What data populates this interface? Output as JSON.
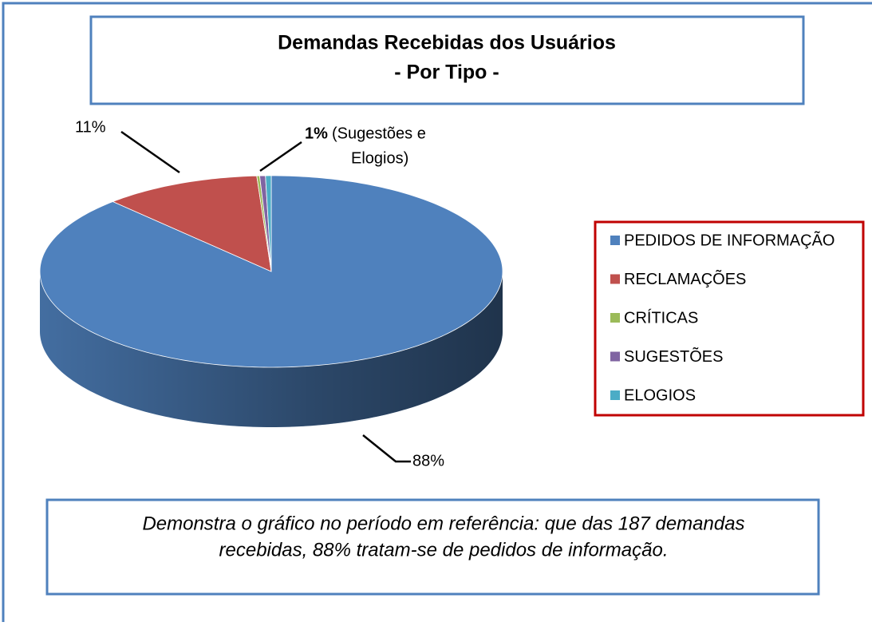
{
  "chart_data": {
    "type": "pie3d",
    "title": [
      "Demandas Recebidas dos Usuários",
      "- Por Tipo -"
    ],
    "categories": [
      "PEDIDOS DE INFORMAÇÃO",
      "RECLAMAÇÕES",
      "CRÍTICAS",
      "SUGESTÕES",
      "ELOGIOS"
    ],
    "values": [
      88,
      11,
      0.2,
      0.4,
      0.4
    ],
    "value_labels": [
      "88%",
      "11%",
      null,
      null,
      null
    ],
    "colors": [
      "#4f81bd",
      "#c0504d",
      "#9bbb59",
      "#8064a2",
      "#4bacc6"
    ],
    "annotation": {
      "value_label": "1%",
      "text": [
        "(Sugestões e",
        "Elogios)"
      ]
    },
    "legend": "right",
    "caption": [
      "Demonstra o gráfico no período em referência: que das 187 demandas",
      "recebidas, 88% tratam-se de pedidos de informação."
    ]
  }
}
